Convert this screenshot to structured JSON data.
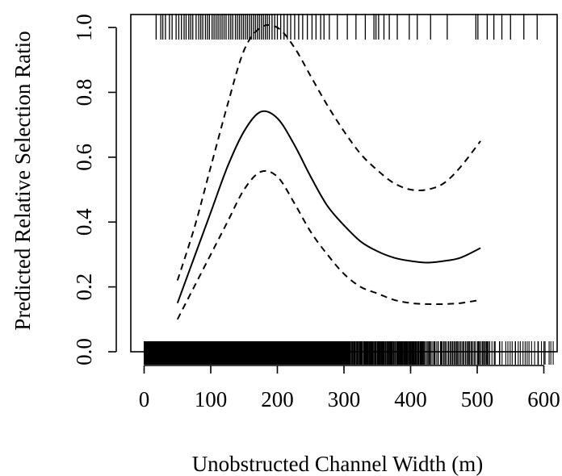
{
  "chart_data": {
    "type": "line",
    "title": "",
    "xlabel": "Unobstructed Channel Width (m)",
    "ylabel": "Predicted Relative Selection Ratio",
    "xlim": [
      -20,
      620
    ],
    "ylim": [
      0,
      1.04
    ],
    "x_ticks": [
      0,
      100,
      200,
      300,
      400,
      500,
      600
    ],
    "x_tick_labels": [
      "0",
      "100",
      "200",
      "300",
      "400",
      "500",
      "600"
    ],
    "y_ticks": [
      0.0,
      0.2,
      0.4,
      0.6,
      0.8,
      1.0
    ],
    "y_tick_labels": [
      "0.0",
      "0.2",
      "0.4",
      "0.6",
      "0.8",
      "1.0"
    ],
    "grid": false,
    "series": [
      {
        "style": "solid",
        "x": [
          50,
          75,
          100,
          125,
          150,
          175,
          200,
          225,
          250,
          275,
          300,
          325,
          350,
          375,
          400,
          425,
          450,
          475,
          505
        ],
        "y": [
          0.15,
          0.29,
          0.43,
          0.57,
          0.68,
          0.74,
          0.72,
          0.64,
          0.54,
          0.45,
          0.39,
          0.34,
          0.31,
          0.29,
          0.28,
          0.275,
          0.28,
          0.29,
          0.32
        ]
      },
      {
        "style": "dashed",
        "x": [
          50,
          75,
          100,
          125,
          150,
          175,
          200,
          225,
          250,
          275,
          300,
          325,
          350,
          375,
          400,
          425,
          450,
          475,
          505
        ],
        "y": [
          0.22,
          0.38,
          0.57,
          0.76,
          0.93,
          1.0,
          1.0,
          0.94,
          0.85,
          0.76,
          0.68,
          0.61,
          0.56,
          0.52,
          0.5,
          0.5,
          0.52,
          0.57,
          0.65
        ]
      },
      {
        "style": "dashed",
        "x": [
          50,
          75,
          100,
          125,
          150,
          175,
          200,
          225,
          250,
          275,
          300,
          325,
          350,
          375,
          400,
          425,
          450,
          475,
          505
        ],
        "y": [
          0.1,
          0.2,
          0.3,
          0.4,
          0.5,
          0.555,
          0.54,
          0.46,
          0.37,
          0.3,
          0.24,
          0.2,
          0.18,
          0.16,
          0.15,
          0.147,
          0.147,
          0.15,
          0.16
        ]
      }
    ],
    "rug": {
      "top_y": 1.0,
      "top_x": [
        18,
        25,
        28,
        32,
        38,
        42,
        48,
        52,
        56,
        60,
        63,
        67,
        70,
        73,
        78,
        82,
        85,
        88,
        92,
        95,
        98,
        102,
        105,
        108,
        111,
        114,
        117,
        120,
        123,
        127,
        130,
        133,
        137,
        140,
        143,
        146,
        149,
        152,
        155,
        158,
        161,
        164,
        167,
        170,
        173,
        176,
        179,
        182,
        185,
        188,
        192,
        196,
        200,
        205,
        210,
        215,
        220,
        226,
        232,
        238,
        245,
        252,
        258,
        265,
        270,
        278,
        290,
        305,
        318,
        332,
        345,
        348,
        352,
        360,
        368,
        380,
        398,
        410,
        430,
        455,
        498,
        501,
        515,
        525,
        537,
        550,
        570,
        590
      ],
      "bottom_y": 0.0,
      "bottom_density": [
        {
          "from": 0,
          "to": 310,
          "count": 620
        },
        {
          "from": 310,
          "to": 420,
          "count": 120
        },
        {
          "from": 420,
          "to": 520,
          "count": 60
        },
        {
          "from": 520,
          "to": 615,
          "count": 28
        }
      ]
    }
  }
}
